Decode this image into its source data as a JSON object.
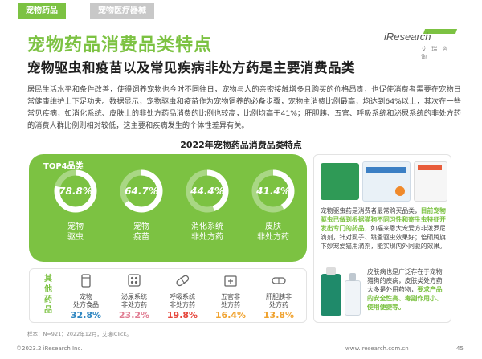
{
  "tabs": [
    {
      "label": "宠物药品",
      "active": true
    },
    {
      "label": "宠物医疗器械",
      "active": false
    }
  ],
  "title": "宠物药品消费品类特点",
  "logo": {
    "main": "iResearch",
    "sub": "艾 瑞 咨 询"
  },
  "subtitle": "宠物驱虫和疫苗以及常见疾病非处方药是主要消费品类",
  "body": "居民生活水平和条件改善，使得饲养宠物也今时不同往日，宠物与人的亲密接触增多且购买的价格昂贵，也促使消费者需要在宠物日常健康维护上下足功夫。数据显示，宠物驱虫和疫苗作为宠物饲养的必备步骤，宠物主消费比例最高，均达到64%以上，其次在一些常见疾病，如消化系统、皮肤上的非处方药品消费的比例也较高，比例均高于41%；肝胆胰、五官、呼吸系统和泌尿系统的非处方药的消费人群比例则相对较低，这主要和疾病发生的个体性差异有关。",
  "chart_title": "2022年宠物药品消费品类特点",
  "top4": {
    "heading": "TOP4品类",
    "items": [
      {
        "value": "78.8%",
        "percent": 78.8,
        "label1": "宠物",
        "label2": "驱虫"
      },
      {
        "value": "64.7%",
        "percent": 64.7,
        "label1": "宠物",
        "label2": "疫苗"
      },
      {
        "value": "44.4%",
        "percent": 44.4,
        "label1": "消化系统",
        "label2": "非处方药"
      },
      {
        "value": "41.4%",
        "percent": 41.4,
        "label1": "皮肤",
        "label2": "非处方药"
      }
    ]
  },
  "others": {
    "heading": "其他药品",
    "items": [
      {
        "name1": "宠物",
        "name2": "处方食品",
        "value": "32.8%",
        "color": "#2e86c1",
        "icon": "food-can-icon"
      },
      {
        "name1": "泌尿系统",
        "name2": "非处方药",
        "value": "23.2%",
        "color": "#e07b91",
        "icon": "pill-box-icon"
      },
      {
        "name1": "呼吸系统",
        "name2": "非处方药",
        "value": "19.8%",
        "color": "#e6463c",
        "icon": "capsule-icon"
      },
      {
        "name1": "五官非",
        "name2": "处方药",
        "value": "16.4%",
        "color": "#f0a22e",
        "icon": "medicine-box-icon"
      },
      {
        "name1": "肝胆胰非",
        "name2": "处方药",
        "value": "13.8%",
        "color": "#f0a22e",
        "icon": "pill-icon"
      }
    ]
  },
  "card": {
    "text1_pre": "宠物驱虫药是消费者最常购买品类，",
    "text1_bold": "目前宠物驱虫已做到根据猫狗不同习性和寄生虫特征开发出专门的药品",
    "text1_post": "，如福来恩大宠爱方非泼罗尼滴剂，针对虱子、跳蚤驱虫效果好；倍硕腾旗下妙宠爱猫用滴剂，能实现内外同驱的效果。",
    "text2_pre": "皮肤病也是广泛存在于宠物猫狗的疾病，皮肤类处方药大多是外用药物，",
    "text2_bold": "要求产品的安全性高、毒副作用小、使用便捷等。"
  },
  "source": "样本：N=921；2022年12月，艾瑞iClick。",
  "footer": {
    "left": "©2023.2 iResearch Inc.",
    "right": "www.iresearch.com.cn",
    "page": "45"
  },
  "colors": {
    "accent": "#7cc242",
    "ring_track": "#ffffff"
  }
}
